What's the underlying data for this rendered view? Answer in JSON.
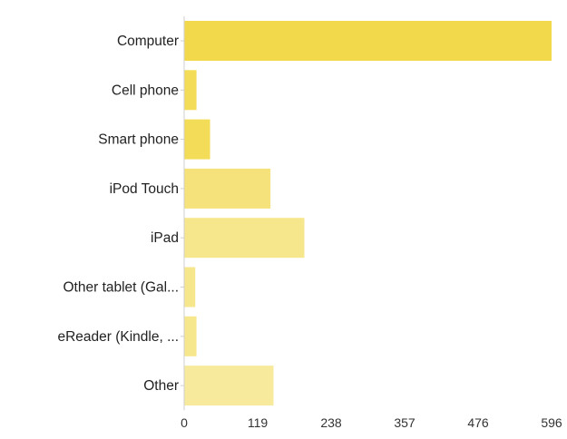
{
  "chart_data": {
    "type": "bar",
    "orientation": "horizontal",
    "categories": [
      "Computer",
      "Cell phone",
      "Smart phone",
      "iPod Touch",
      "iPad",
      "Other tablet (Gal...",
      "eReader (Kindle, ...",
      "Other"
    ],
    "values": [
      596,
      20,
      42,
      140,
      195,
      18,
      20,
      145
    ],
    "xlim": [
      0,
      596
    ],
    "xticks": [
      "0",
      "119",
      "238",
      "357",
      "476",
      "596"
    ],
    "grid": false,
    "legend": "none",
    "bar_colors": [
      "#f2d94c",
      "#f3dc58",
      "#f3dc58",
      "#f5e27a",
      "#f6e68c",
      "#f6e68c",
      "#f6e68c",
      "#f7ea9c"
    ]
  }
}
